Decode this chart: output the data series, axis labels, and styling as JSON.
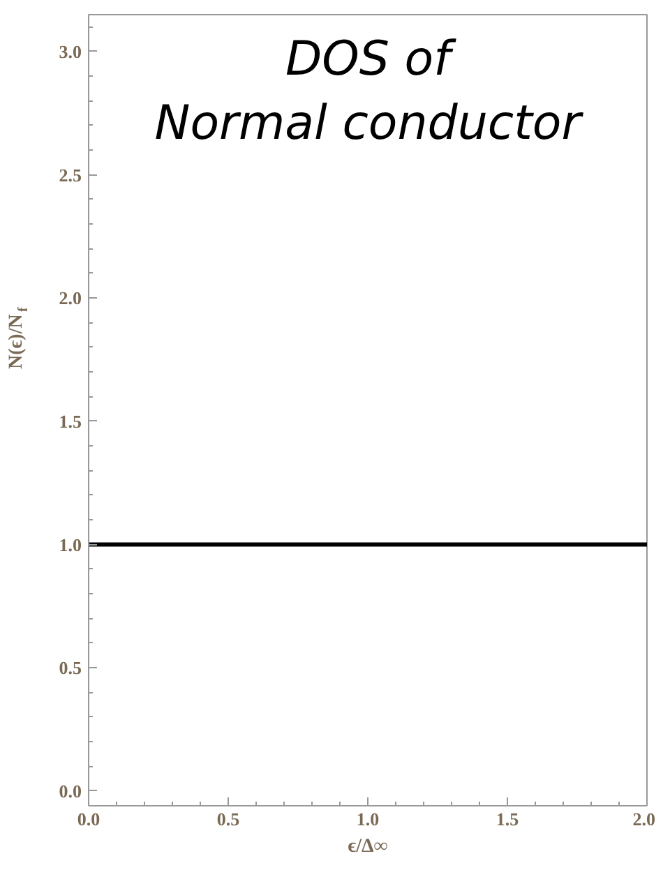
{
  "chart_data": {
    "type": "line",
    "title": "DOS of\nNormal conductor",
    "xlabel": "ϵ/Δ∞",
    "ylabel": "N(ϵ)/N$_{f}$",
    "x": [
      0,
      2
    ],
    "series": [
      {
        "color": "#000000",
        "values": [
          1,
          1
        ]
      }
    ],
    "xlim": [
      0,
      2
    ],
    "ylim": [
      -0.06,
      3.15
    ],
    "xticks": [
      {
        "value": 0,
        "label": "0.0"
      },
      {
        "value": 0.5,
        "label": "0.5"
      },
      {
        "value": 1,
        "label": "1.0"
      },
      {
        "value": 1.5,
        "label": "1.5"
      },
      {
        "value": 2,
        "label": "2.0"
      }
    ],
    "yticks": [
      {
        "value": 0,
        "label": "0.0"
      },
      {
        "value": 0.5,
        "label": "0.5"
      },
      {
        "value": 1,
        "label": "1.0"
      },
      {
        "value": 1.5,
        "label": "1.5"
      },
      {
        "value": 2,
        "label": "2.0"
      },
      {
        "value": 2.5,
        "label": "2.5"
      },
      {
        "value": 3,
        "label": "3.0"
      }
    ],
    "grid": false,
    "marker": "none",
    "line_style": "solid"
  }
}
